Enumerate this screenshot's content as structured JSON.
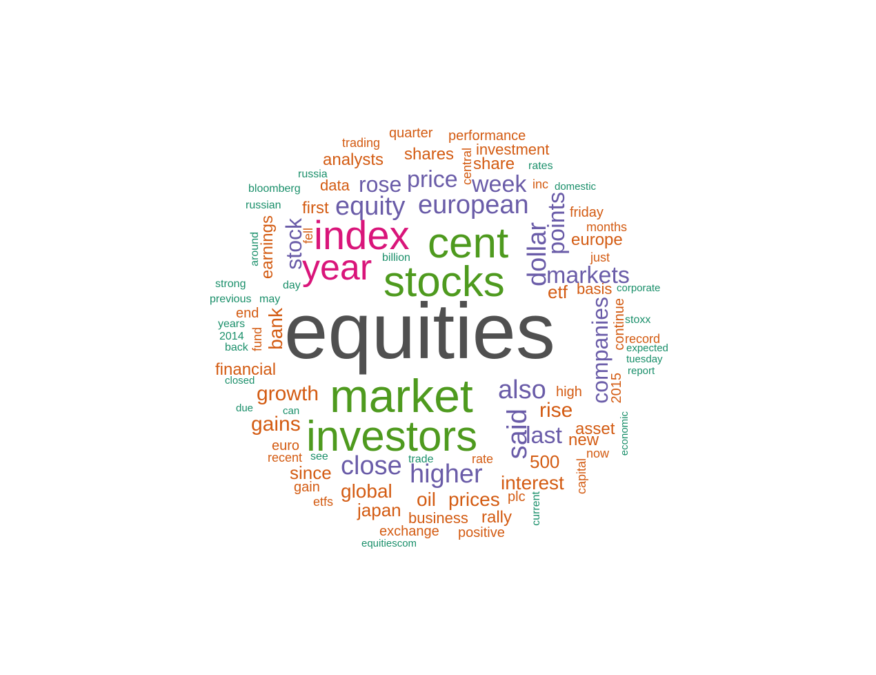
{
  "colors": {
    "tier1": "#505050",
    "tier2": "#4E9A1E",
    "tier3": "#D9157A",
    "tier4": "#6A5CA8",
    "tier5": "#D35B12",
    "tier6": "#1A8F6A"
  },
  "words": [
    {
      "text": "equities"
    },
    {
      "text": "market"
    },
    {
      "text": "investors"
    },
    {
      "text": "stocks"
    },
    {
      "text": "cent"
    },
    {
      "text": "index"
    },
    {
      "text": "year"
    },
    {
      "text": "said"
    },
    {
      "text": "also"
    },
    {
      "text": "close"
    },
    {
      "text": "higher"
    },
    {
      "text": "equity"
    },
    {
      "text": "european"
    },
    {
      "text": "price"
    },
    {
      "text": "rose"
    },
    {
      "text": "week"
    },
    {
      "text": "markets"
    },
    {
      "text": "dollar"
    },
    {
      "text": "points"
    },
    {
      "text": "companies"
    },
    {
      "text": "last"
    },
    {
      "text": "stock"
    },
    {
      "text": "growth"
    },
    {
      "text": "gains"
    },
    {
      "text": "global"
    },
    {
      "text": "since"
    },
    {
      "text": "prices"
    },
    {
      "text": "interest"
    },
    {
      "text": "rise"
    },
    {
      "text": "oil"
    },
    {
      "text": "japan"
    },
    {
      "text": "shares"
    },
    {
      "text": "analysts"
    },
    {
      "text": "share"
    },
    {
      "text": "investment"
    },
    {
      "text": "financial"
    },
    {
      "text": "earnings"
    },
    {
      "text": "bank"
    },
    {
      "text": "first"
    },
    {
      "text": "data"
    },
    {
      "text": "europe"
    },
    {
      "text": "basis"
    },
    {
      "text": "etf"
    },
    {
      "text": "500"
    },
    {
      "text": "asset"
    },
    {
      "text": "new"
    },
    {
      "text": "business"
    },
    {
      "text": "rally"
    },
    {
      "text": "exchange"
    },
    {
      "text": "positive"
    },
    {
      "text": "friday"
    },
    {
      "text": "performance"
    },
    {
      "text": "quarter"
    },
    {
      "text": "trading"
    },
    {
      "text": "end"
    },
    {
      "text": "euro"
    },
    {
      "text": "recent"
    },
    {
      "text": "gain"
    },
    {
      "text": "etfs"
    },
    {
      "text": "plc"
    },
    {
      "text": "rate"
    },
    {
      "text": "high"
    },
    {
      "text": "now"
    },
    {
      "text": "months"
    },
    {
      "text": "just"
    },
    {
      "text": "record"
    },
    {
      "text": "continue"
    },
    {
      "text": "2015"
    },
    {
      "text": "central"
    },
    {
      "text": "inc"
    },
    {
      "text": "fell"
    },
    {
      "text": "fund"
    },
    {
      "text": "capital"
    },
    {
      "text": "russia"
    },
    {
      "text": "bloomberg"
    },
    {
      "text": "russian"
    },
    {
      "text": "strong"
    },
    {
      "text": "previous"
    },
    {
      "text": "may"
    },
    {
      "text": "years"
    },
    {
      "text": "2014"
    },
    {
      "text": "back"
    },
    {
      "text": "closed"
    },
    {
      "text": "due"
    },
    {
      "text": "can"
    },
    {
      "text": "see"
    },
    {
      "text": "trade"
    },
    {
      "text": "equitiescom"
    },
    {
      "text": "current"
    },
    {
      "text": "economic"
    },
    {
      "text": "rates"
    },
    {
      "text": "domestic"
    },
    {
      "text": "corporate"
    },
    {
      "text": "stoxx"
    },
    {
      "text": "expected"
    },
    {
      "text": "tuesday"
    },
    {
      "text": "report"
    },
    {
      "text": "billion"
    },
    {
      "text": "day"
    },
    {
      "text": "around"
    }
  ]
}
